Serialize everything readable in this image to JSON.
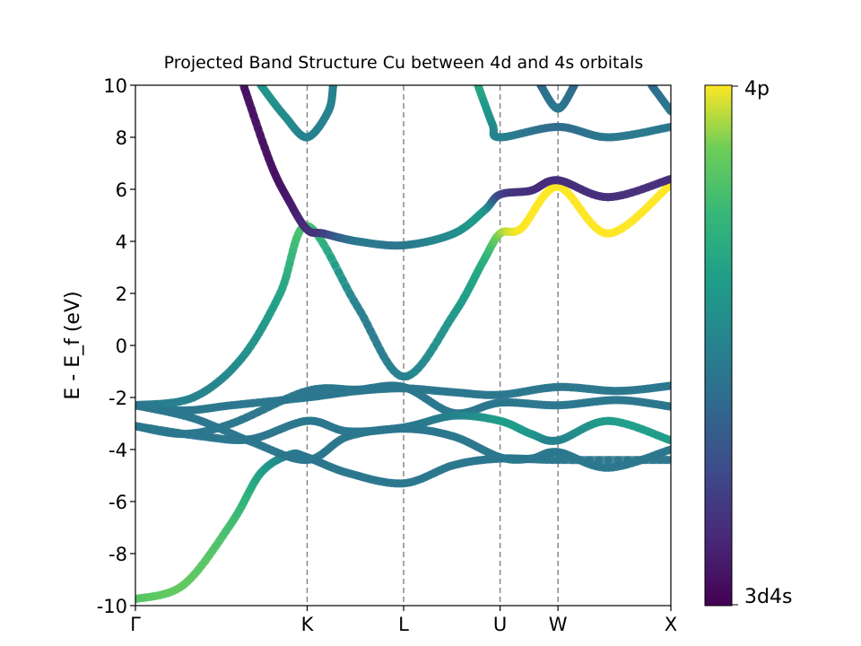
{
  "chart_data": {
    "type": "line",
    "title": "Projected Band Structure Cu between 4d and 4s orbitals",
    "xlabel": "",
    "ylabel": "E - E_f (eV)",
    "xlim": [
      0,
      5.55
    ],
    "ylim": [
      -10,
      10
    ],
    "y_ticks": [
      10,
      8,
      6,
      4,
      2,
      0,
      -2,
      -4,
      -6,
      -8,
      -10
    ],
    "y_tick_labels": [
      "10",
      "8",
      "6",
      "4",
      "2",
      "0",
      "-2",
      "-4",
      "-6",
      "-8",
      "-10"
    ],
    "k_path": [
      {
        "label": "Γ",
        "x": 0
      },
      {
        "label": "K",
        "x": 1.78
      },
      {
        "label": "L",
        "x": 2.78
      },
      {
        "label": "U",
        "x": 3.78
      },
      {
        "label": "W",
        "x": 4.38
      },
      {
        "label": "X",
        "x": 5.55
      }
    ],
    "grid": "vertical dashed lines at high-symmetry points",
    "colorbar": {
      "cmap": "viridis",
      "top_label": "4p",
      "bottom_label": "3d4s",
      "range": [
        0,
        1
      ]
    },
    "series": [
      {
        "points": [
          [
            0,
            -9.75,
            0.82
          ],
          [
            0.5,
            -9.2,
            0.85
          ],
          [
            1.0,
            -6.8,
            0.78
          ],
          [
            1.3,
            -4.9,
            0.65
          ],
          [
            1.6,
            -4.2,
            0.5
          ],
          [
            1.78,
            -4.3,
            0.45
          ],
          [
            2.2,
            -4.9,
            0.45
          ],
          [
            2.78,
            -5.3,
            0.45
          ],
          [
            3.3,
            -4.6,
            0.45
          ],
          [
            3.78,
            -4.35,
            0.45
          ],
          [
            4.38,
            -4.4,
            0.45
          ],
          [
            5.55,
            -4.4,
            0.45
          ]
        ]
      },
      {
        "points": [
          [
            0,
            -2.3,
            0.45
          ],
          [
            0.5,
            -2.5,
            0.45
          ],
          [
            1.0,
            -2.3,
            0.45
          ],
          [
            1.78,
            -2.0,
            0.45
          ],
          [
            2.3,
            -1.75,
            0.45
          ],
          [
            2.78,
            -1.65,
            0.45
          ],
          [
            3.3,
            -1.8,
            0.45
          ],
          [
            3.78,
            -1.9,
            0.45
          ],
          [
            4.38,
            -1.6,
            0.45
          ],
          [
            5.0,
            -1.75,
            0.45
          ],
          [
            5.55,
            -1.55,
            0.45
          ]
        ]
      },
      {
        "points": [
          [
            0,
            -3.1,
            0.45
          ],
          [
            0.5,
            -3.4,
            0.45
          ],
          [
            1.0,
            -3.0,
            0.45
          ],
          [
            1.78,
            -1.75,
            0.45
          ],
          [
            2.3,
            -1.7,
            0.45
          ],
          [
            2.78,
            -1.6,
            0.45
          ],
          [
            3.3,
            -2.6,
            0.45
          ],
          [
            3.78,
            -2.2,
            0.45
          ],
          [
            4.38,
            -2.3,
            0.45
          ],
          [
            5.0,
            -2.1,
            0.45
          ],
          [
            5.55,
            -2.35,
            0.45
          ]
        ]
      },
      {
        "points": [
          [
            0,
            -2.3,
            0.45
          ],
          [
            0.6,
            -2.8,
            0.45
          ],
          [
            1.2,
            -3.7,
            0.45
          ],
          [
            1.78,
            -4.4,
            0.45
          ],
          [
            2.2,
            -3.5,
            0.45
          ],
          [
            2.78,
            -3.2,
            0.45
          ],
          [
            3.3,
            -3.5,
            0.45
          ],
          [
            3.78,
            -4.3,
            0.45
          ],
          [
            4.1,
            -4.35,
            0.45
          ],
          [
            4.38,
            -4.1,
            0.45
          ],
          [
            4.9,
            -4.7,
            0.45
          ],
          [
            5.55,
            -4.0,
            0.45
          ]
        ]
      },
      {
        "points": [
          [
            0,
            -3.1,
            0.45
          ],
          [
            0.7,
            -3.5,
            0.45
          ],
          [
            1.2,
            -3.6,
            0.45
          ],
          [
            1.78,
            -2.9,
            0.45
          ],
          [
            2.2,
            -3.3,
            0.45
          ],
          [
            2.78,
            -3.15,
            0.45
          ],
          [
            3.3,
            -2.7,
            0.5
          ],
          [
            3.78,
            -2.9,
            0.62
          ],
          [
            4.1,
            -3.4,
            0.6
          ],
          [
            4.38,
            -3.65,
            0.5
          ],
          [
            4.9,
            -2.9,
            0.62
          ],
          [
            5.55,
            -3.65,
            0.62
          ]
        ]
      },
      {
        "points": [
          [
            0,
            -2.3,
            0.45
          ],
          [
            0.6,
            -2.0,
            0.5
          ],
          [
            1.1,
            -0.5,
            0.55
          ],
          [
            1.5,
            2.0,
            0.65
          ],
          [
            1.78,
            4.6,
            0.8
          ],
          [
            2.3,
            1.5,
            0.5
          ],
          [
            2.78,
            -1.2,
            0.5
          ],
          [
            3.3,
            1.2,
            0.6
          ],
          [
            3.6,
            3.2,
            0.7
          ],
          [
            3.78,
            4.3,
            0.9
          ],
          [
            4.0,
            4.5,
            1.0
          ],
          [
            4.38,
            6.1,
            1.0
          ],
          [
            4.9,
            4.3,
            1.0
          ],
          [
            5.55,
            6.2,
            1.0
          ]
        ]
      },
      {
        "points": [
          [
            1.12,
            10.0,
            0.05
          ],
          [
            1.4,
            7.0,
            0.05
          ],
          [
            1.6,
            5.5,
            0.08
          ],
          [
            1.78,
            4.45,
            0.15
          ],
          [
            1.95,
            4.3,
            0.2
          ],
          [
            2.3,
            4.0,
            0.45
          ],
          [
            2.78,
            3.85,
            0.45
          ],
          [
            3.3,
            4.3,
            0.55
          ],
          [
            3.62,
            5.2,
            0.6
          ],
          [
            3.78,
            5.8,
            0.25
          ],
          [
            4.1,
            5.95,
            0.15
          ],
          [
            4.38,
            6.35,
            0.15
          ],
          [
            4.9,
            5.7,
            0.15
          ],
          [
            5.55,
            6.4,
            0.15
          ]
        ]
      },
      {
        "points": [
          [
            1.3,
            10.0,
            0.6
          ],
          [
            1.55,
            8.8,
            0.55
          ],
          [
            1.78,
            8.0,
            0.5
          ],
          [
            2.0,
            9.0,
            0.5
          ],
          [
            2.05,
            10.0,
            0.5
          ]
        ]
      },
      {
        "points": [
          [
            3.55,
            10.0,
            0.7
          ],
          [
            3.7,
            8.5,
            0.55
          ],
          [
            3.78,
            8.0,
            0.5
          ],
          [
            4.38,
            8.4,
            0.4
          ],
          [
            4.9,
            8.0,
            0.45
          ],
          [
            5.55,
            8.4,
            0.45
          ]
        ]
      },
      {
        "points": [
          [
            4.2,
            10.0,
            0.4
          ],
          [
            4.38,
            9.1,
            0.45
          ],
          [
            4.55,
            10.0,
            0.4
          ]
        ]
      },
      {
        "points": [
          [
            5.35,
            10.0,
            0.4
          ],
          [
            5.55,
            9.0,
            0.45
          ]
        ]
      }
    ]
  }
}
